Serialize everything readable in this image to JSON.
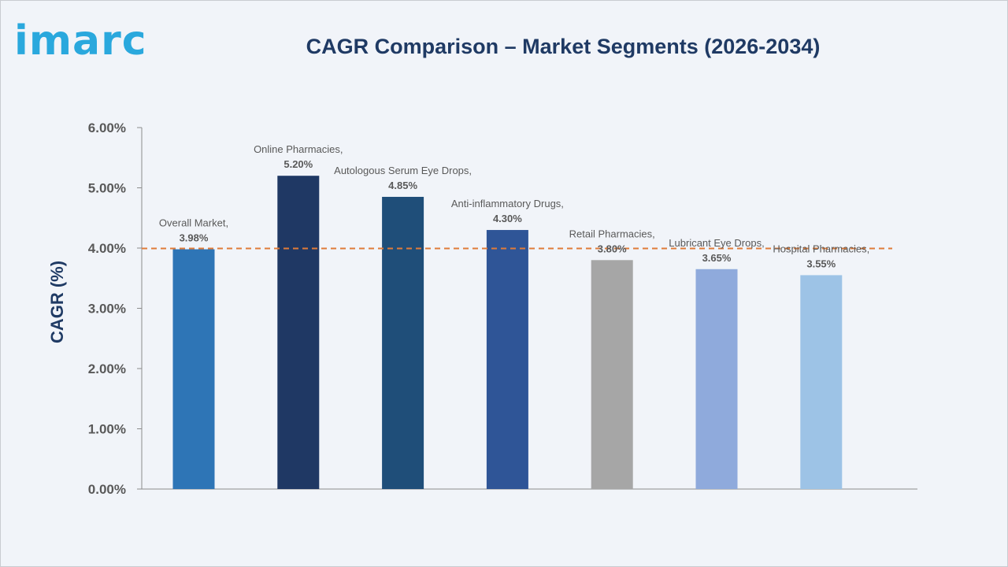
{
  "brand": {
    "logo_text": "imarc"
  },
  "chart_data": {
    "type": "bar",
    "title": "CAGR Comparison – Market Segments (2026-2034)",
    "ylabel": "CAGR (%)",
    "xlabel": "",
    "ylim": [
      0,
      6
    ],
    "yticks": [
      "0.00%",
      "1.00%",
      "2.00%",
      "3.00%",
      "4.00%",
      "5.00%",
      "6.00%"
    ],
    "categories": [
      "Overall Market,",
      "Online Pharmacies,",
      "Autologous Serum Eye Drops,",
      "Anti-inflammatory Drugs,",
      "Retail Pharmacies,",
      "Lubricant Eye Drops,",
      "Hospital Pharmacies,"
    ],
    "values": [
      3.98,
      5.2,
      4.85,
      4.3,
      3.8,
      3.65,
      3.55
    ],
    "value_labels": [
      "3.98%",
      "5.20%",
      "4.85%",
      "4.30%",
      "3.80%",
      "3.65%",
      "3.55%"
    ],
    "colors": [
      "#2e75b6",
      "#1f3864",
      "#1f4e79",
      "#2f5597",
      "#a6a6a6",
      "#8faadc",
      "#9dc3e6"
    ],
    "reference_line": {
      "value": 3.98,
      "color": "#e07b39",
      "style": "dashed"
    },
    "grid": false,
    "legend": "none"
  }
}
